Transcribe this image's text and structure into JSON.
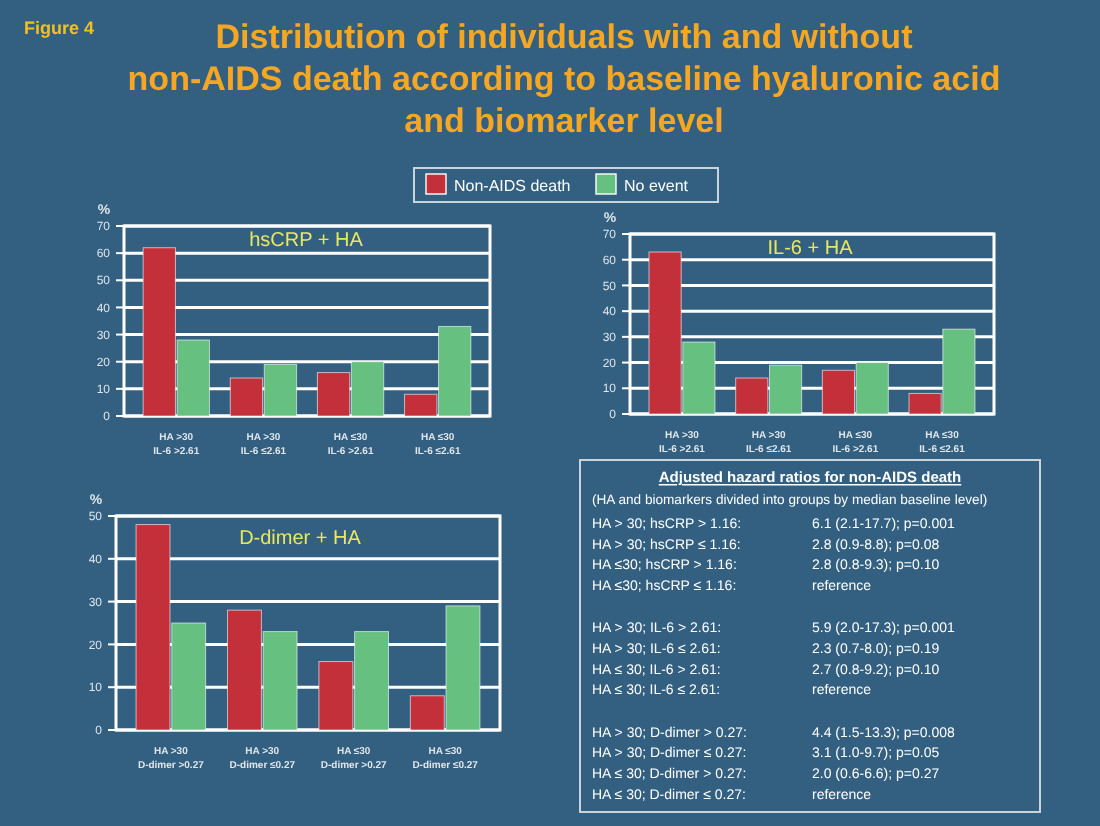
{
  "chart_data": [
    {
      "type": "other",
      "title": "Distribution of individuals with and without non-AIDS death according to baseline hyaluronic acid and biomarker level",
      "annotations": [
        "Figure 4"
      ]
    },
    {
      "type": "bar",
      "title": "hsCRP + HA",
      "ylabel": "%",
      "categories": [
        "HA >30\nIL-6 >2.61",
        "HA >30\nIL-6 ≤2.61",
        "HA ≤30\nIL-6 >2.61",
        "HA ≤30\nIL-6 ≤2.61"
      ],
      "series": [
        {
          "name": "Non-AIDS death",
          "color": "#c4303a",
          "values": [
            62,
            14,
            16,
            8
          ]
        },
        {
          "name": "No event",
          "color": "#66c080",
          "values": [
            28,
            19,
            20,
            33
          ]
        }
      ],
      "ylim": [
        0,
        70
      ],
      "yticks": [
        0,
        10,
        20,
        30,
        40,
        50,
        60,
        70
      ],
      "grid": "y",
      "legend": "top right"
    },
    {
      "type": "bar",
      "title": "IL-6 + HA",
      "ylabel": "%",
      "categories": [
        "HA >30\nIL-6 >2.61",
        "HA >30\nIL-6 ≤2.61",
        "HA ≤30\nIL-6 >2.61",
        "HA ≤30\nIL-6 ≤2.61"
      ],
      "series": [
        {
          "color": "#c4303a",
          "values": [
            63,
            14,
            17,
            8
          ]
        },
        {
          "color": "#66c080",
          "values": [
            28,
            19,
            20,
            33
          ]
        }
      ],
      "ylim": [
        0,
        70
      ],
      "yticks": [
        0,
        10,
        20,
        30,
        40,
        50,
        60,
        70
      ],
      "grid": "y"
    },
    {
      "type": "bar",
      "title": "D-dimer + HA",
      "ylabel": "%",
      "categories": [
        "HA >30\nD-dimer >0.27",
        "HA >30\nD-dimer ≤0.27",
        "HA ≤30\nD-dimer >0.27",
        "HA ≤30\nD-dimer ≤0.27"
      ],
      "series": [
        {
          "color": "#c4303a",
          "values": [
            48,
            28,
            16,
            8
          ]
        },
        {
          "color": "#66c080",
          "values": [
            25,
            23,
            23,
            29
          ]
        }
      ],
      "ylim": [
        0,
        50
      ],
      "yticks": [
        0,
        10,
        20,
        30,
        40,
        50
      ],
      "grid": "y"
    },
    {
      "type": "other",
      "title": "Adjusted hazard ratios for non-AIDS death",
      "annotations": [
        "(HA and biomarkers divided into groups by median baseline level)",
        "HA > 30; hsCRP > 1.16:",
        "6.1 (2.1-17.7); p=0.001",
        "HA > 30; hsCRP ≤ 1.16:",
        "2.8 (0.9-8.8); p=0.08",
        "HA ≤30; hsCRP > 1.16:",
        "2.8 (0.8-9.3); p=0.10",
        "HA ≤30; hsCRP ≤ 1.16:",
        "reference",
        "HA > 30; IL-6 > 2.61:",
        "5.9 (2.0-17.3); p=0.001",
        "HA > 30; IL-6 ≤ 2.61:",
        "2.3 (0.7-8.0); p=0.19",
        "HA ≤ 30; IL-6 > 2.61:",
        "2.7 (0.8-9.2); p=0.10",
        "HA ≤ 30; IL-6 ≤ 2.61:",
        "reference",
        "HA > 30; D-dimer > 0.27:",
        "4.4 (1.5-13.3); p=0.008",
        "HA > 30; D-dimer ≤ 0.27:",
        "3.1 (1.0-9.7); p=0.05",
        "HA ≤ 30; D-dimer > 0.27:",
        "2.0 (0.6-6.6); p=0.27",
        "HA ≤ 30; D-dimer ≤ 0.27:",
        "reference"
      ]
    }
  ]
}
